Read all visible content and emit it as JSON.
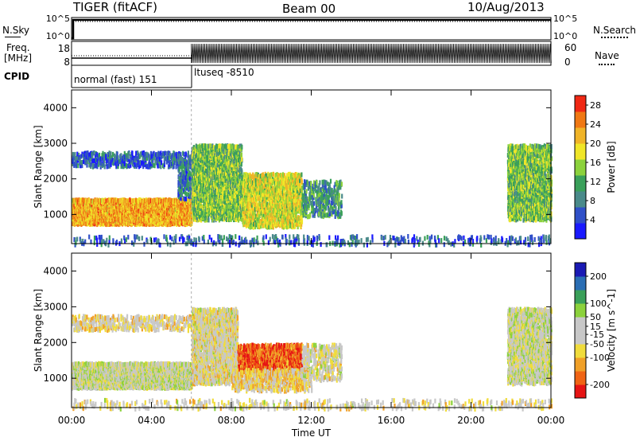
{
  "header": {
    "title": "TIGER (fitACF)",
    "beam": "Beam 00",
    "date": "10/Aug/2013"
  },
  "status": {
    "nsky_label": "N.Sky",
    "nsky_ticks": [
      "10^5",
      "10^0"
    ],
    "nsearch_label": "N.Search",
    "nsearch_ticks": [
      "10^5",
      "10^0"
    ],
    "freq_label_line1": "Freq.",
    "freq_label_line2": "[MHz]",
    "freq_ticks": [
      "18",
      "8"
    ],
    "nave_label": "Nave",
    "nave_ticks": [
      "60",
      "0"
    ],
    "cpid_label": "CPID",
    "cpid_segments": [
      "normal (fast) 151",
      "ltuseq -8510"
    ]
  },
  "chart_data": [
    {
      "type": "heatmap",
      "name": "power-panel",
      "xlabel": "Time UT",
      "ylabel": "Slant Range [km]",
      "x_ticks": [
        "00:00",
        "04:00",
        "08:00",
        "12:00",
        "16:00",
        "20:00",
        "00:00"
      ],
      "xlim_hours": [
        0,
        24
      ],
      "y_ticks": [
        1000,
        2000,
        3000,
        4000
      ],
      "ylim": [
        180,
        4500
      ],
      "colorbar": {
        "label": "Power [dB]",
        "ticks": [
          4,
          8,
          12,
          16,
          20,
          24,
          28
        ],
        "range": [
          0,
          30
        ],
        "colors": [
          "#1a1aff",
          "#3050c8",
          "#4a8a8a",
          "#3aa05a",
          "#8cd23c",
          "#f0e628",
          "#f0b428",
          "#f07814",
          "#f02814"
        ]
      },
      "regions": [
        {
          "t0": 0.0,
          "t1": 6.0,
          "r0": 780,
          "r1": 1480,
          "value": 22,
          "density": 1.0
        },
        {
          "t0": 0.0,
          "t1": 6.0,
          "r0": 2400,
          "r1": 2800,
          "value": 6,
          "density": 0.35
        },
        {
          "t0": 5.3,
          "t1": 6.0,
          "r0": 1500,
          "r1": 2600,
          "value": 8,
          "density": 0.4
        },
        {
          "t0": 6.0,
          "t1": 8.5,
          "r0": 900,
          "r1": 3000,
          "value": 14,
          "density": 0.6
        },
        {
          "t0": 8.5,
          "t1": 11.5,
          "r0": 700,
          "r1": 2200,
          "value": 18,
          "density": 0.55
        },
        {
          "t0": 11.5,
          "t1": 13.5,
          "r0": 1000,
          "r1": 2000,
          "value": 10,
          "density": 0.3
        },
        {
          "t0": 21.8,
          "t1": 24.0,
          "r0": 900,
          "r1": 3000,
          "value": 14,
          "density": 0.6
        },
        {
          "t0": 0.0,
          "t1": 24.0,
          "r0": 200,
          "r1": 450,
          "value": 6,
          "density": 0.12
        }
      ]
    },
    {
      "type": "heatmap",
      "name": "velocity-panel",
      "xlabel": "Time UT",
      "ylabel": "Slant Range [km]",
      "x_ticks": [
        "00:00",
        "04:00",
        "08:00",
        "12:00",
        "16:00",
        "20:00",
        "00:00"
      ],
      "xlim_hours": [
        0,
        24
      ],
      "y_ticks": [
        1000,
        2000,
        3000,
        4000
      ],
      "ylim": [
        180,
        4500
      ],
      "colorbar": {
        "label": "Velocity [m s^-1]",
        "ticks": [
          200,
          100,
          50,
          15,
          -15,
          -50,
          -100,
          -200
        ],
        "range": [
          -250,
          250
        ],
        "colors": [
          "#e61414",
          "#f06414",
          "#f0a028",
          "#f0dc3c",
          "#c8c8c8",
          "#c8c8c8",
          "#8cd23c",
          "#3aa05a",
          "#2a6eb4",
          "#1a1ab4"
        ]
      },
      "regions": [
        {
          "t0": 0.0,
          "t1": 6.0,
          "r0": 780,
          "r1": 1480,
          "value": 0,
          "density": 1.0
        },
        {
          "t0": 0.0,
          "t1": 6.0,
          "r0": 2400,
          "r1": 2800,
          "value": -40,
          "density": 0.3
        },
        {
          "t0": 6.0,
          "t1": 8.3,
          "r0": 900,
          "r1": 3000,
          "value": -30,
          "density": 0.6
        },
        {
          "t0": 8.3,
          "t1": 11.5,
          "r0": 1200,
          "r1": 2000,
          "value": -180,
          "density": 0.65
        },
        {
          "t0": 8.0,
          "t1": 12.0,
          "r0": 700,
          "r1": 1300,
          "value": -60,
          "density": 0.4
        },
        {
          "t0": 11.5,
          "t1": 13.5,
          "r0": 1000,
          "r1": 2000,
          "value": -20,
          "density": 0.3
        },
        {
          "t0": 21.8,
          "t1": 24.0,
          "r0": 900,
          "r1": 3000,
          "value": 0,
          "density": 0.6
        },
        {
          "t0": 0.0,
          "t1": 24.0,
          "r0": 200,
          "r1": 450,
          "value": -30,
          "density": 0.12
        }
      ]
    }
  ]
}
